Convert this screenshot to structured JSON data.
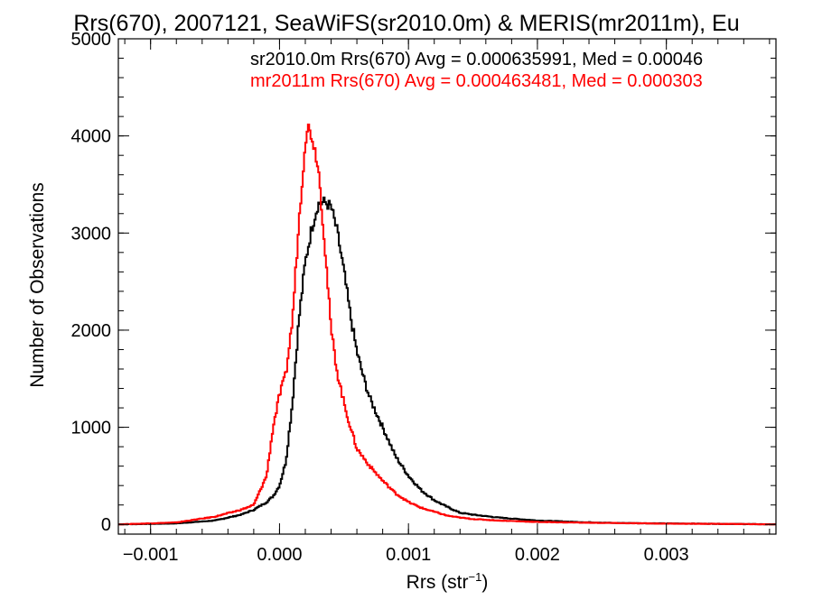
{
  "chart_data": {
    "type": "line",
    "title": "Rrs(670), 2007121, SeaWiFS(sr2010.0m) & MERIS(mr2011m), Eu",
    "xlabel": "Rrs (str",
    "xlabel_sup": "−1",
    "xlabel_close": ")",
    "ylabel": "Number of Observations",
    "xlim": [
      -0.00125,
      0.00385
    ],
    "ylim": [
      -100,
      5000
    ],
    "x_ticks": [
      -0.001,
      0.0,
      0.001,
      0.002,
      0.003
    ],
    "x_tick_labels": [
      "−0.001",
      "0.000",
      "0.001",
      "0.002",
      "0.003"
    ],
    "y_ticks": [
      0,
      1000,
      2000,
      3000,
      4000,
      5000
    ],
    "y_tick_labels": [
      "0",
      "1000",
      "2000",
      "3000",
      "4000",
      "5000"
    ],
    "grid": false,
    "step_style": true,
    "series": [
      {
        "name": "sr2010.0m",
        "color": "#000000",
        "annotation": "sr2010.0m Rrs(670) Avg = 0.000635991, Med = 0.00046",
        "x": [
          -0.00125,
          -0.0008,
          -0.0005,
          -0.0003,
          -0.0002,
          -0.0001,
          -5e-05,
          0.0,
          5e-05,
          0.0001,
          0.00015,
          0.0002,
          0.00025,
          0.0003,
          0.00035,
          0.0004,
          0.00045,
          0.0005,
          0.00055,
          0.0006,
          0.00065,
          0.0007,
          0.0008,
          0.0009,
          0.001,
          0.0011,
          0.0012,
          0.0013,
          0.0014,
          0.0015,
          0.0017,
          0.002,
          0.0023,
          0.0026,
          0.003,
          0.0035,
          0.00385
        ],
        "y": [
          0,
          10,
          40,
          100,
          150,
          230,
          290,
          400,
          650,
          1250,
          2100,
          2700,
          3050,
          3300,
          3320,
          3270,
          3000,
          2600,
          2150,
          1780,
          1520,
          1300,
          1000,
          700,
          500,
          350,
          250,
          180,
          120,
          100,
          70,
          40,
          25,
          15,
          10,
          5,
          0
        ]
      },
      {
        "name": "mr2011m",
        "color": "#ff0000",
        "annotation": "mr2011m Rrs(670) Avg = 0.000463481, Med = 0.000303",
        "x": [
          -0.00125,
          -0.0008,
          -0.0005,
          -0.0003,
          -0.0002,
          -0.0001,
          -5e-05,
          0.0,
          5e-05,
          0.0001,
          0.00015,
          0.0002,
          0.00022,
          0.00025,
          0.0003,
          0.00035,
          0.0004,
          0.00045,
          0.0005,
          0.00055,
          0.0006,
          0.0007,
          0.0008,
          0.0009,
          0.001,
          0.0011,
          0.0012,
          0.0013,
          0.0014,
          0.0015,
          0.0017,
          0.002,
          0.0025,
          0.003,
          0.0035,
          0.00385
        ],
        "y": [
          0,
          20,
          80,
          150,
          200,
          500,
          1000,
          1330,
          1550,
          2100,
          3100,
          3950,
          4100,
          4000,
          3700,
          2900,
          2000,
          1550,
          1250,
          1000,
          780,
          600,
          450,
          320,
          230,
          170,
          130,
          90,
          70,
          55,
          40,
          25,
          15,
          8,
          5,
          0
        ]
      }
    ]
  }
}
